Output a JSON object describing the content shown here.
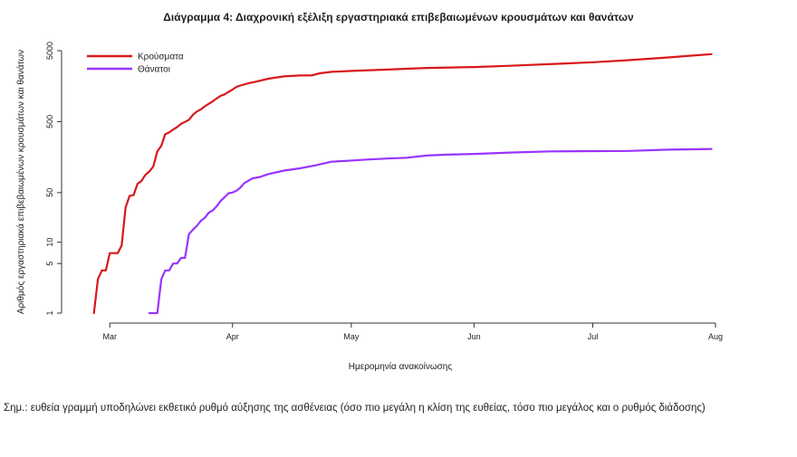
{
  "chart_data": {
    "type": "line",
    "title": "Διάγραμμα 4: Διαχρονική εξέλιξη εργαστηριακά επιβεβαιωμένων κρουσμάτων και θανάτων",
    "xlabel": "Ημερομηνία ανακοίνωσης",
    "ylabel": "Αριθμός εργαστηριακά επιβεβαιωμένων κρουσμάτων και θανάτων",
    "y_scale": "log",
    "ylim": [
      1,
      5000
    ],
    "xlim": [
      "2020-02-24",
      "2020-08-01"
    ],
    "y_ticks": [
      {
        "value": 1,
        "label": "1"
      },
      {
        "value": 5,
        "label": "5"
      },
      {
        "value": 10,
        "label": "10"
      },
      {
        "value": 50,
        "label": "50"
      },
      {
        "value": 500,
        "label": "500"
      },
      {
        "value": 5000,
        "label": "5000"
      }
    ],
    "x_ticks": [
      {
        "date": "2020-03-01",
        "label": "Mar"
      },
      {
        "date": "2020-04-01",
        "label": "Apr"
      },
      {
        "date": "2020-05-01",
        "label": "May"
      },
      {
        "date": "2020-06-01",
        "label": "Jun"
      },
      {
        "date": "2020-07-01",
        "label": "Jul"
      },
      {
        "date": "2020-08-01",
        "label": "Aug"
      }
    ],
    "grid": false,
    "legend_position": "top-left",
    "series": [
      {
        "name": "Κρούσματα",
        "color": "#d7191c",
        "points": [
          [
            "2020-02-26",
            1
          ],
          [
            "2020-02-27",
            3
          ],
          [
            "2020-02-28",
            4
          ],
          [
            "2020-02-29",
            4
          ],
          [
            "2020-03-01",
            7
          ],
          [
            "2020-03-02",
            7
          ],
          [
            "2020-03-03",
            7
          ],
          [
            "2020-03-04",
            9
          ],
          [
            "2020-03-05",
            31
          ],
          [
            "2020-03-06",
            45
          ],
          [
            "2020-03-07",
            46
          ],
          [
            "2020-03-08",
            66
          ],
          [
            "2020-03-09",
            73
          ],
          [
            "2020-03-10",
            89
          ],
          [
            "2020-03-11",
            99
          ],
          [
            "2020-03-12",
            117
          ],
          [
            "2020-03-13",
            190
          ],
          [
            "2020-03-14",
            228
          ],
          [
            "2020-03-15",
            331
          ],
          [
            "2020-03-16",
            352
          ],
          [
            "2020-03-17",
            387
          ],
          [
            "2020-03-18",
            418
          ],
          [
            "2020-03-19",
            464
          ],
          [
            "2020-03-20",
            495
          ],
          [
            "2020-03-21",
            530
          ],
          [
            "2020-03-22",
            624
          ],
          [
            "2020-03-23",
            695
          ],
          [
            "2020-03-24",
            743
          ],
          [
            "2020-03-25",
            821
          ],
          [
            "2020-03-26",
            892
          ],
          [
            "2020-03-27",
            966
          ],
          [
            "2020-03-28",
            1061
          ],
          [
            "2020-03-29",
            1156
          ],
          [
            "2020-03-30",
            1212
          ],
          [
            "2020-03-31",
            1314
          ],
          [
            "2020-04-01",
            1415
          ],
          [
            "2020-04-02",
            1544
          ],
          [
            "2020-04-03",
            1613
          ],
          [
            "2020-04-05",
            1735
          ],
          [
            "2020-04-07",
            1832
          ],
          [
            "2020-04-10",
            2011
          ],
          [
            "2020-04-14",
            2170
          ],
          [
            "2020-04-18",
            2235
          ],
          [
            "2020-04-21",
            2245
          ],
          [
            "2020-04-23",
            2401
          ],
          [
            "2020-04-26",
            2517
          ],
          [
            "2020-05-01",
            2591
          ],
          [
            "2020-05-10",
            2710
          ],
          [
            "2020-05-20",
            2850
          ],
          [
            "2020-06-01",
            2937
          ],
          [
            "2020-06-10",
            3058
          ],
          [
            "2020-06-20",
            3227
          ],
          [
            "2020-07-01",
            3432
          ],
          [
            "2020-07-10",
            3672
          ],
          [
            "2020-07-20",
            4007
          ],
          [
            "2020-07-31",
            4477
          ]
        ]
      },
      {
        "name": "Θάνατοι",
        "color": "#9933ff",
        "points": [
          [
            "2020-03-11",
            1
          ],
          [
            "2020-03-12",
            1
          ],
          [
            "2020-03-13",
            1
          ],
          [
            "2020-03-14",
            3
          ],
          [
            "2020-03-15",
            4
          ],
          [
            "2020-03-16",
            4
          ],
          [
            "2020-03-17",
            5
          ],
          [
            "2020-03-18",
            5
          ],
          [
            "2020-03-19",
            6
          ],
          [
            "2020-03-20",
            6
          ],
          [
            "2020-03-21",
            13
          ],
          [
            "2020-03-22",
            15
          ],
          [
            "2020-03-23",
            17
          ],
          [
            "2020-03-24",
            20
          ],
          [
            "2020-03-25",
            22
          ],
          [
            "2020-03-26",
            26
          ],
          [
            "2020-03-27",
            28
          ],
          [
            "2020-03-28",
            32
          ],
          [
            "2020-03-29",
            38
          ],
          [
            "2020-03-30",
            43
          ],
          [
            "2020-03-31",
            49
          ],
          [
            "2020-04-01",
            50
          ],
          [
            "2020-04-02",
            53
          ],
          [
            "2020-04-03",
            59
          ],
          [
            "2020-04-04",
            68
          ],
          [
            "2020-04-06",
            79
          ],
          [
            "2020-04-08",
            83
          ],
          [
            "2020-04-10",
            91
          ],
          [
            "2020-04-14",
            102
          ],
          [
            "2020-04-18",
            110
          ],
          [
            "2020-04-22",
            121
          ],
          [
            "2020-04-26",
            136
          ],
          [
            "2020-04-30",
            140
          ],
          [
            "2020-05-05",
            146
          ],
          [
            "2020-05-10",
            151
          ],
          [
            "2020-05-15",
            155
          ],
          [
            "2020-05-20",
            166
          ],
          [
            "2020-05-25",
            171
          ],
          [
            "2020-06-01",
            175
          ],
          [
            "2020-06-10",
            183
          ],
          [
            "2020-06-20",
            190
          ],
          [
            "2020-07-01",
            192
          ],
          [
            "2020-07-10",
            193
          ],
          [
            "2020-07-20",
            201
          ],
          [
            "2020-07-31",
            206
          ]
        ]
      }
    ]
  },
  "footnote": "Σημ.: ευθεία γραμμή υποδηλώνει εκθετικό ρυθμό αύξησης της ασθένειας (όσο πιο μεγάλη η κλίση της ευθείας, τόσο πιο μεγάλος και ο ρυθμός διάδοσης)"
}
